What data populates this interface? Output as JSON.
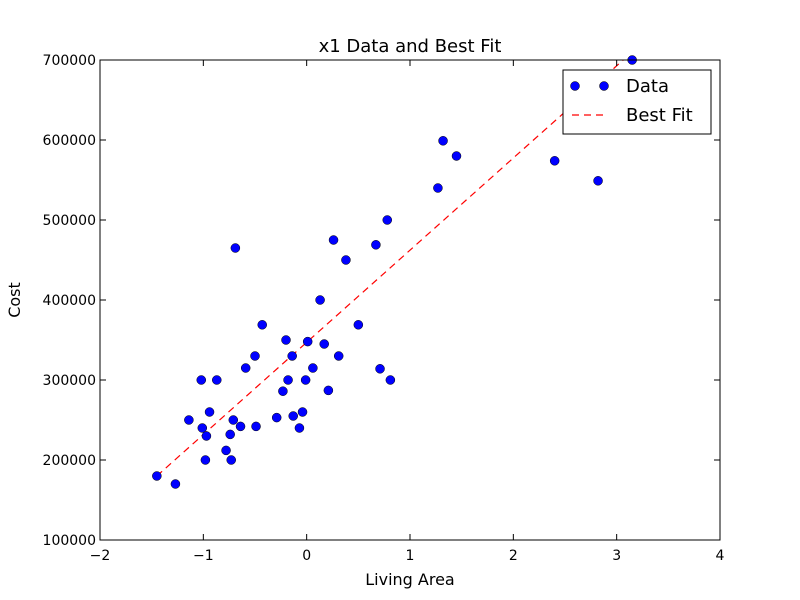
{
  "chart_data": {
    "type": "scatter",
    "title": "x1 Data and Best Fit",
    "xlabel": "Living Area",
    "ylabel": "Cost",
    "xlim": [
      -2,
      4
    ],
    "ylim": [
      100000,
      700000
    ],
    "xticks": [
      -2,
      -1,
      0,
      1,
      2,
      3,
      4
    ],
    "yticks": [
      100000,
      200000,
      300000,
      400000,
      500000,
      600000,
      700000
    ],
    "xtick_labels": [
      "−2",
      "−1",
      "0",
      "1",
      "2",
      "3",
      "4"
    ],
    "ytick_labels": [
      "100000",
      "200000",
      "300000",
      "400000",
      "500000",
      "600000",
      "700000"
    ],
    "grid": false,
    "legend_position": "top-right",
    "series": [
      {
        "name": "Data",
        "style": "markers",
        "color": "#0000ff",
        "points": [
          [
            -1.45,
            180000
          ],
          [
            -1.27,
            170000
          ],
          [
            -1.14,
            250000
          ],
          [
            -1.02,
            300000
          ],
          [
            -1.01,
            240000
          ],
          [
            -0.98,
            200000
          ],
          [
            -0.97,
            230000
          ],
          [
            -0.94,
            260000
          ],
          [
            -0.87,
            300000
          ],
          [
            -0.78,
            212000
          ],
          [
            -0.74,
            232000
          ],
          [
            -0.73,
            200000
          ],
          [
            -0.71,
            250000
          ],
          [
            -0.69,
            465000
          ],
          [
            -0.64,
            242000
          ],
          [
            -0.59,
            315000
          ],
          [
            -0.5,
            330000
          ],
          [
            -0.49,
            242000
          ],
          [
            -0.43,
            369000
          ],
          [
            -0.29,
            253000
          ],
          [
            -0.23,
            286000
          ],
          [
            -0.2,
            350000
          ],
          [
            -0.18,
            300000
          ],
          [
            -0.14,
            330000
          ],
          [
            -0.13,
            255000
          ],
          [
            -0.07,
            240000
          ],
          [
            -0.04,
            260000
          ],
          [
            -0.01,
            300000
          ],
          [
            0.01,
            348000
          ],
          [
            0.06,
            315000
          ],
          [
            0.13,
            400000
          ],
          [
            0.17,
            345000
          ],
          [
            0.21,
            287000
          ],
          [
            0.26,
            475000
          ],
          [
            0.31,
            330000
          ],
          [
            0.38,
            450000
          ],
          [
            0.5,
            369000
          ],
          [
            0.67,
            469000
          ],
          [
            0.71,
            314000
          ],
          [
            0.78,
            500000
          ],
          [
            0.81,
            300000
          ],
          [
            1.27,
            540000
          ],
          [
            1.32,
            599000
          ],
          [
            1.45,
            580000
          ],
          [
            2.4,
            574000
          ],
          [
            2.82,
            549000
          ],
          [
            3.15,
            700000
          ]
        ]
      },
      {
        "name": "Best Fit",
        "style": "dashed-line",
        "color": "#ff0000",
        "points": [
          [
            -1.45,
            180000
          ],
          [
            3.15,
            710000
          ]
        ]
      }
    ]
  }
}
